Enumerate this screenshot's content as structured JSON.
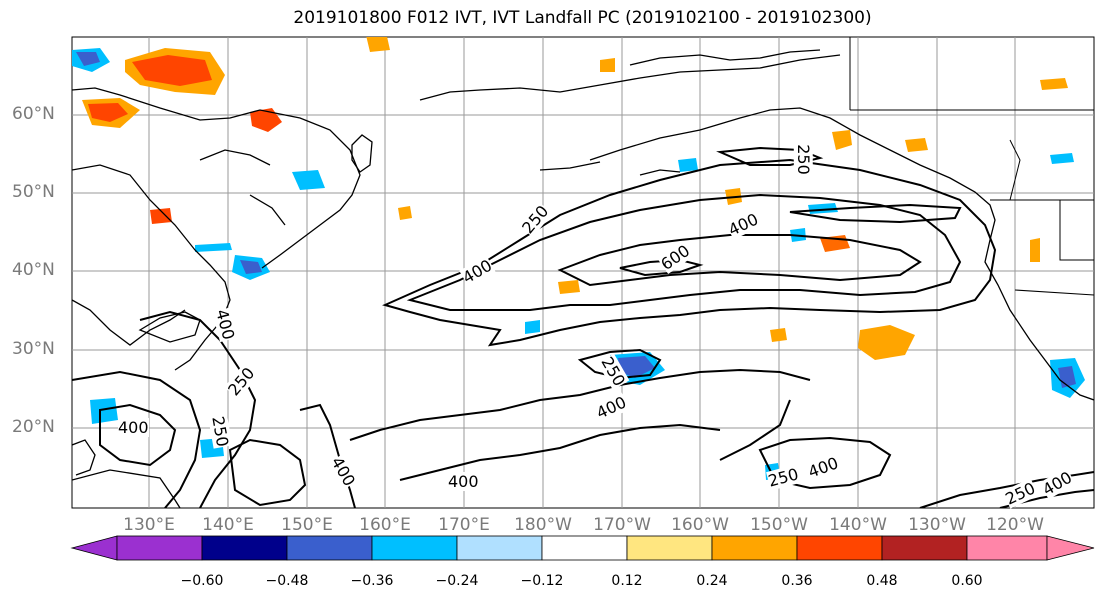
{
  "title": "2019101800 F012 IVT, IVT Landfall PC (2019102100 - 2019102300)",
  "lat_labels": [
    "60°N",
    "50°N",
    "40°N",
    "30°N",
    "20°N"
  ],
  "lon_labels": [
    "130°E",
    "140°E",
    "150°E",
    "160°E",
    "170°E",
    "180°W",
    "170°W",
    "160°W",
    "150°W",
    "140°W",
    "130°W",
    "120°W"
  ],
  "contour_labels": [
    "250",
    "250",
    "400",
    "400",
    "600",
    "250",
    "400",
    "250",
    "400",
    "400",
    "250",
    "400",
    "400",
    "250",
    "400",
    "250",
    "400"
  ],
  "colorbar": {
    "ticks": [
      "−0.60",
      "−0.48",
      "−0.36",
      "−0.24",
      "−0.12",
      "0.12",
      "0.24",
      "0.36",
      "0.48",
      "0.60"
    ],
    "colors": [
      "#9b30d0",
      "#00008b",
      "#3a5fcd",
      "#00bfff",
      "#b0e0ff",
      "#ffffff",
      "#ffe680",
      "#ffa500",
      "#ff4500",
      "#b22222",
      "#ff85a8"
    ]
  }
}
